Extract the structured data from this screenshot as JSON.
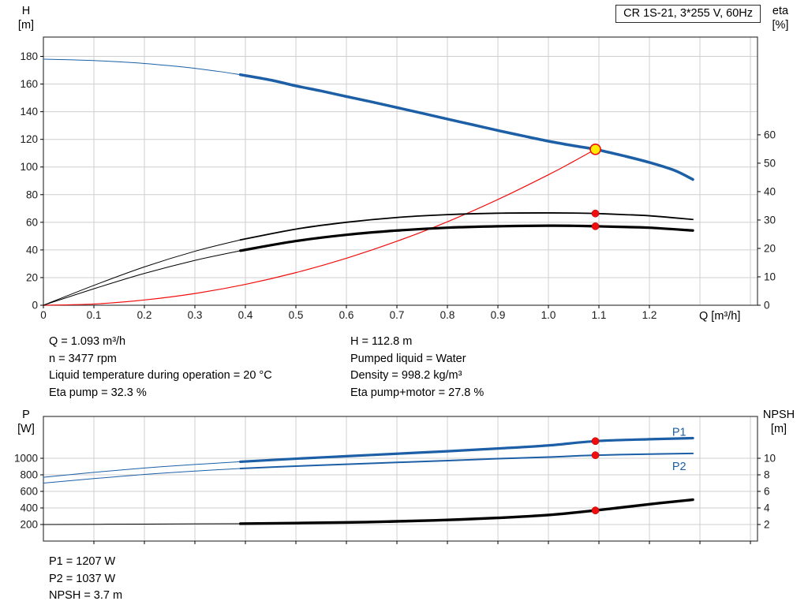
{
  "title_box": "CR 1S-21, 3*255 V, 60Hz",
  "colors": {
    "curve_blue": "#1c5fa6",
    "marker_red": "#f20d0d",
    "duty_yellow": "#ffeb00",
    "grid": "#cfcfcf",
    "frame": "#3c3c3c",
    "tick_text": "#1a1a1a"
  },
  "axis_titles": {
    "top_left": [
      "H",
      "[m]"
    ],
    "top_right": [
      "eta",
      "[%]"
    ],
    "top_x": "Q [m³/h]",
    "bottom_left": [
      "P",
      "[W]"
    ],
    "bottom_right": [
      "NPSH",
      "[m]"
    ]
  },
  "info_left": [
    "Q = 1.093 m³/h",
    "n = 3477 rpm",
    "Liquid temperature during operation = 20 °C",
    "Eta pump = 32.3 %"
  ],
  "info_right": [
    "H = 112.8 m",
    "Pumped liquid = Water",
    "Density = 998.2 kg/m³",
    "Eta pump+motor = 27.8 %"
  ],
  "results": [
    "P1 = 1207 W",
    "P2 = 1037 W",
    "NPSH = 3.7 m"
  ],
  "chart_data": [
    {
      "id": "top",
      "type": "line",
      "title": "CR 1S-21, 3*255 V, 60Hz",
      "x_axis": {
        "label": "Q [m³/h]",
        "min": 0,
        "max": 1.414,
        "grid": [
          0.1,
          0.2,
          0.3,
          0.4,
          0.5,
          0.6,
          0.7,
          0.8,
          0.9,
          1.0,
          1.1,
          1.2,
          1.3,
          1.4
        ],
        "tick_values": [
          0,
          0.1,
          0.2,
          0.3,
          0.4,
          0.5,
          0.6,
          0.7,
          0.8,
          0.9,
          1.0,
          1.1,
          1.2
        ],
        "tick_labels": [
          "0",
          "0.1",
          "0.2",
          "0.3",
          "0.4",
          "0.5",
          "0.6",
          "0.7",
          "0.8",
          "0.9",
          "1.0",
          "1.1",
          "1.2"
        ]
      },
      "y_left": {
        "label": "H [m]",
        "min": 0,
        "max": 194,
        "grid": [
          20,
          40,
          60,
          80,
          100,
          120,
          140,
          160,
          180
        ],
        "tick_values": [
          0,
          20,
          40,
          60,
          80,
          100,
          120,
          140,
          160,
          180
        ],
        "tick_labels": [
          "0",
          "20",
          "40",
          "60",
          "80",
          "100",
          "120",
          "140",
          "160",
          "180"
        ]
      },
      "y_right": {
        "label": "eta [%]",
        "min": 0,
        "max": 94.4,
        "tick_values": [
          0,
          10,
          20,
          30,
          40,
          50,
          60
        ],
        "tick_labels": [
          "0",
          "10",
          "20",
          "30",
          "40",
          "50",
          "60"
        ]
      },
      "series": [
        {
          "name": "h-curve",
          "axis": "left",
          "color": "curve_blue",
          "width": 3.5,
          "thin_until": 0.39,
          "x": [
            0,
            0.05,
            0.1,
            0.15,
            0.2,
            0.25,
            0.3,
            0.35,
            0.39,
            0.45,
            0.5,
            0.55,
            0.6,
            0.65,
            0.7,
            0.75,
            0.8,
            0.85,
            0.9,
            0.95,
            1.0,
            1.05,
            1.093,
            1.15,
            1.2,
            1.25,
            1.286
          ],
          "y": [
            178,
            177.6,
            177,
            176.1,
            174.9,
            173.3,
            171.4,
            169,
            166.8,
            162.9,
            158.7,
            155,
            151,
            147.1,
            143,
            138.9,
            134.7,
            130.6,
            126.4,
            122.5,
            118.7,
            115.4,
            112.8,
            108,
            103.3,
            97.5,
            91
          ]
        },
        {
          "name": "system-curve",
          "axis": "left",
          "color": "marker_red",
          "width": 1.2,
          "x": [
            0,
            0.1,
            0.2,
            0.3,
            0.4,
            0.5,
            0.6,
            0.7,
            0.8,
            0.9,
            1.0,
            1.05,
            1.093
          ],
          "y": [
            0,
            0.9,
            3.8,
            8.5,
            15.1,
            23.6,
            34.0,
            46.3,
            60.4,
            76.5,
            94.4,
            104.1,
            112.8
          ]
        },
        {
          "name": "eta-pump-curve",
          "axis": "right",
          "color": "#000000",
          "width": 1.8,
          "thin_until": 0.39,
          "x": [
            0,
            0.1,
            0.2,
            0.3,
            0.39,
            0.5,
            0.6,
            0.7,
            0.8,
            0.9,
            1.0,
            1.05,
            1.093,
            1.15,
            1.2,
            1.286
          ],
          "y": [
            0,
            7,
            13.5,
            19,
            23,
            26.8,
            29.2,
            30.9,
            31.9,
            32.4,
            32.5,
            32.45,
            32.3,
            31.9,
            31.5,
            30.2
          ]
        },
        {
          "name": "eta-pump-motor-curve",
          "axis": "right",
          "color": "#000000",
          "width": 3.2,
          "thin_until": 0.39,
          "x": [
            0,
            0.1,
            0.2,
            0.3,
            0.39,
            0.5,
            0.6,
            0.7,
            0.8,
            0.9,
            1.0,
            1.05,
            1.093,
            1.15,
            1.2,
            1.286
          ],
          "y": [
            0,
            5.8,
            11.2,
            15.8,
            19.2,
            22.6,
            24.8,
            26.3,
            27.3,
            27.8,
            28.0,
            27.95,
            27.8,
            27.55,
            27.3,
            26.3
          ]
        }
      ],
      "markers": [
        {
          "x": 1.093,
          "y": 112.8,
          "axis": "left",
          "style": "duty",
          "name": "duty-point-marker"
        },
        {
          "x": 1.093,
          "y": 32.3,
          "axis": "right",
          "style": "dot",
          "name": "eta-pump-dot"
        },
        {
          "x": 1.093,
          "y": 27.8,
          "axis": "right",
          "style": "dot",
          "name": "eta-pump-motor-dot"
        }
      ],
      "series_labels": []
    },
    {
      "id": "bottom",
      "type": "line",
      "x_axis": {
        "label": "",
        "min": 0,
        "max": 1.414,
        "grid": [
          0.1,
          0.2,
          0.3,
          0.4,
          0.5,
          0.6,
          0.7,
          0.8,
          0.9,
          1.0,
          1.1,
          1.2,
          1.3,
          1.4
        ],
        "tick_values": [
          0.1,
          0.2,
          0.3,
          0.4,
          0.5,
          0.6,
          0.7,
          0.8,
          0.9,
          1.0,
          1.1,
          1.2,
          1.3,
          1.4
        ],
        "tick_labels": []
      },
      "y_left": {
        "label": "P [W]",
        "min": 0,
        "max": 1505,
        "grid": [
          200,
          400,
          600,
          800,
          1000
        ],
        "tick_values": [
          200,
          400,
          600,
          800,
          1000
        ],
        "tick_labels": [
          "200",
          "400",
          "600",
          "800",
          "1000"
        ]
      },
      "y_right": {
        "label": "NPSH [m]",
        "min": 0,
        "max": 15.05,
        "tick_values": [
          2,
          4,
          6,
          8,
          10
        ],
        "tick_labels": [
          "2",
          "4",
          "6",
          "8",
          "10"
        ]
      },
      "series": [
        {
          "name": "p1-curve",
          "axis": "left",
          "color": "curve_blue",
          "width": 3.2,
          "thin_until": 0.39,
          "x": [
            0,
            0.1,
            0.2,
            0.3,
            0.39,
            0.5,
            0.6,
            0.7,
            0.8,
            0.9,
            1.0,
            1.093,
            1.2,
            1.286
          ],
          "y": [
            770,
            830,
            882,
            925,
            958,
            995,
            1025,
            1055,
            1085,
            1118,
            1155,
            1207,
            1230,
            1243
          ]
        },
        {
          "name": "p2-curve",
          "axis": "left",
          "color": "curve_blue",
          "width": 2,
          "thin_until": 0.39,
          "x": [
            0,
            0.1,
            0.2,
            0.3,
            0.39,
            0.5,
            0.6,
            0.7,
            0.8,
            0.9,
            1.0,
            1.093,
            1.2,
            1.286
          ],
          "y": [
            700,
            755,
            805,
            845,
            876,
            905,
            928,
            950,
            972,
            995,
            1015,
            1037,
            1050,
            1058
          ]
        },
        {
          "name": "npsh-curve",
          "axis": "right",
          "color": "#000000",
          "width": 3.4,
          "thin_until": 0.39,
          "x": [
            0,
            0.2,
            0.39,
            0.6,
            0.7,
            0.8,
            0.9,
            1.0,
            1.093,
            1.2,
            1.286
          ],
          "y": [
            2.0,
            2.05,
            2.1,
            2.25,
            2.38,
            2.55,
            2.8,
            3.15,
            3.7,
            4.45,
            5.0
          ]
        }
      ],
      "markers": [
        {
          "x": 1.093,
          "y": 1207,
          "axis": "left",
          "style": "dot",
          "name": "p1-dot"
        },
        {
          "x": 1.093,
          "y": 1037,
          "axis": "left",
          "style": "dot",
          "name": "p2-dot"
        },
        {
          "x": 1.093,
          "y": 3.7,
          "axis": "right",
          "style": "dot",
          "name": "npsh-dot"
        }
      ],
      "series_labels": [
        {
          "text": "P1",
          "x": 1.245,
          "y": 1320,
          "axis": "left",
          "name": "p1-label"
        },
        {
          "text": "P2",
          "x": 1.245,
          "y": 905,
          "axis": "left",
          "name": "p2-label"
        }
      ]
    }
  ]
}
